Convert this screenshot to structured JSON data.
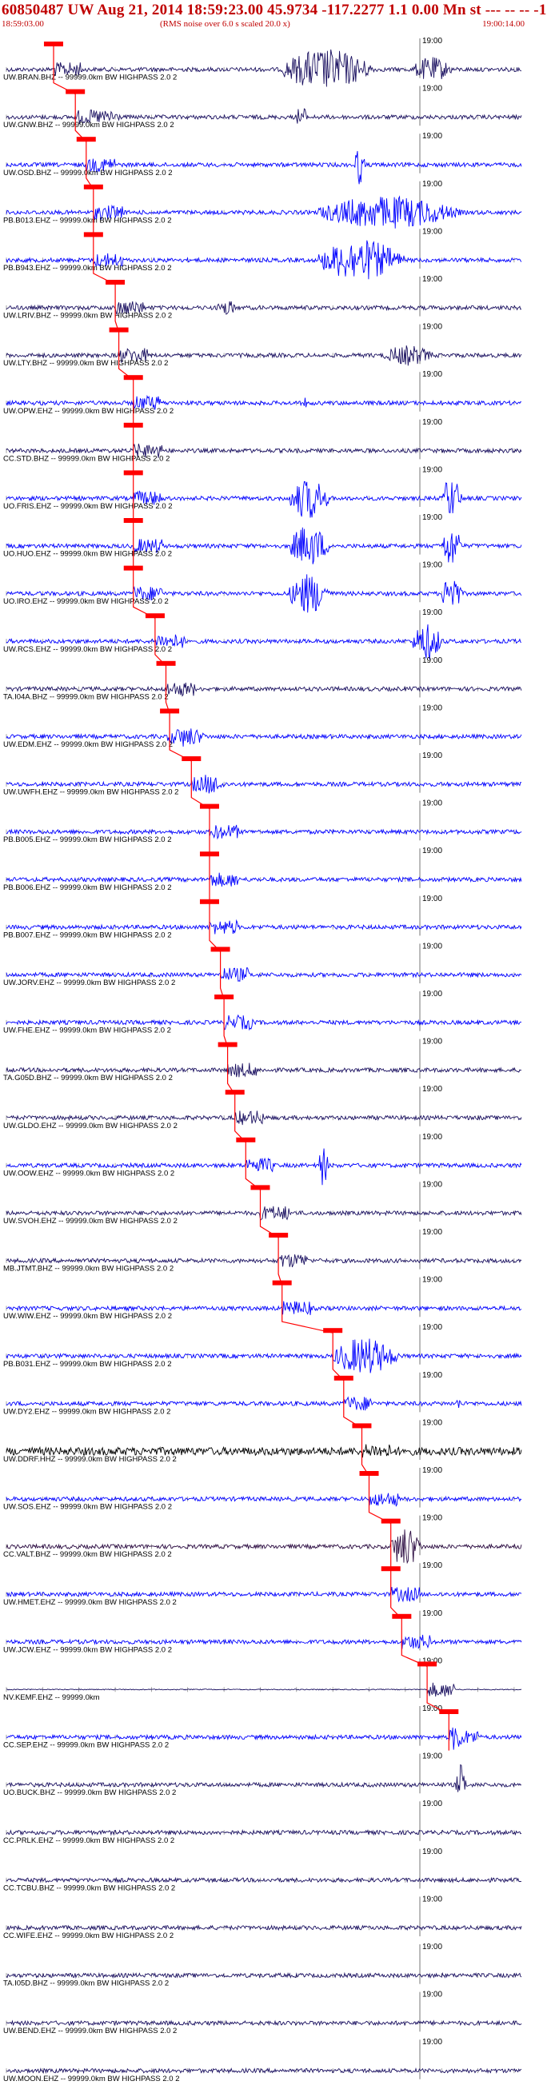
{
  "header": {
    "title": "60850487 UW Aug 21, 2014 18:59:23.00   45.9734 -117.2277  1.1 0.00 Mn st --- -- -- -1",
    "start_time": "18:59:03.00",
    "rms_note": "(RMS noise over 6.0 s scaled 20.0 x)",
    "end_time": "19:00:14.00"
  },
  "colors": {
    "header_text": "#c00000",
    "pick": "#ff0000",
    "trace_blue": "#0000ff",
    "trace_navy": "#1a1060",
    "trace_purple": "#3a1878",
    "trace_black": "#000000",
    "trace_darkpurple": "#2a0a40"
  },
  "minute_label": "19:00",
  "chart_data": {
    "type": "seismogram-record-section",
    "time_range": [
      "18:59:03.00",
      "19:00:14.00"
    ],
    "minute_mark": "19:00",
    "rms_window_s": 6.0,
    "scale_factor": 20.0,
    "traces": [
      {
        "label": "UW.BRAN.BHZ -- 99999.0km BW  HIGHPASS  2.0  2",
        "pick_s": 6.5,
        "color": "navy",
        "energy": [
          [
            38,
            56,
            1.0
          ],
          [
            56,
            64,
            0.6
          ]
        ]
      },
      {
        "label": "UW.GNW.BHZ -- 99999.0km BW  HIGHPASS  2.0  2",
        "pick_s": 9.5,
        "color": "navy",
        "energy": [
          [
            13,
            17,
            0.4
          ],
          [
            40,
            42,
            0.7
          ]
        ]
      },
      {
        "label": "UW.OSD.BHZ -- 99999.0km BW  HIGHPASS  2.0  2",
        "pick_s": 11.0,
        "color": "blue",
        "energy": [
          [
            48,
            50,
            1.0
          ]
        ]
      },
      {
        "label": "PB.B013.EHZ -- 99999.0km BW  HIGHPASS  2.0  2",
        "pick_s": 12.0,
        "color": "blue",
        "energy": [
          [
            43,
            71,
            0.8
          ]
        ]
      },
      {
        "label": "PB.B943.EHZ -- 99999.0km BW  HIGHPASS  2.0  2",
        "pick_s": 12.0,
        "color": "blue",
        "energy": [
          [
            43,
            60,
            1.0
          ]
        ]
      },
      {
        "label": "UW.LRIV.BHZ -- 99999.0km BW  HIGHPASS  2.0  2",
        "pick_s": 15.0,
        "color": "navy",
        "energy": [
          [
            29,
            33,
            0.4
          ]
        ]
      },
      {
        "label": "UW.LTY.BHZ -- 99999.0km BW  HIGHPASS  2.0  2",
        "pick_s": 15.5,
        "color": "navy",
        "energy": [
          [
            52,
            62,
            0.5
          ]
        ]
      },
      {
        "label": "UW.OPW.EHZ -- 99999.0km BW  HIGHPASS  2.0  2",
        "pick_s": 17.5,
        "color": "blue",
        "energy": [
          [
            41,
            42,
            0.3
          ]
        ]
      },
      {
        "label": "CC.STD.BHZ -- 99999.0km BW  HIGHPASS  2.0  2",
        "pick_s": 17.5,
        "color": "navy",
        "energy": []
      },
      {
        "label": "UO.FRIS.EHZ -- 99999.0km BW  HIGHPASS  2.0  2",
        "pick_s": 17.5,
        "color": "blue",
        "energy": [
          [
            39,
            47,
            1.0
          ],
          [
            60,
            64,
            1.0
          ]
        ]
      },
      {
        "label": "UO.HUO.EHZ -- 99999.0km BW  HIGHPASS  2.0  2",
        "pick_s": 17.5,
        "color": "blue",
        "energy": [
          [
            39,
            47,
            1.0
          ],
          [
            60,
            64,
            1.0
          ]
        ]
      },
      {
        "label": "UO.IRO.EHZ -- 99999.0km BW  HIGHPASS  2.0  2",
        "pick_s": 17.5,
        "color": "blue",
        "energy": [
          [
            39,
            47,
            1.0
          ],
          [
            60,
            64,
            1.0
          ]
        ]
      },
      {
        "label": "UW.RCS.EHZ -- 99999.0km BW  HIGHPASS  2.0  2",
        "pick_s": 20.5,
        "color": "blue",
        "energy": [
          [
            56,
            62,
            0.9
          ]
        ]
      },
      {
        "label": "TA.I04A.BHZ -- 99999.0km BW  HIGHPASS  2.0  2",
        "pick_s": 22.0,
        "color": "navy",
        "energy": []
      },
      {
        "label": "UW.EDM.EHZ -- 99999.0km BW  HIGHPASS  2.0  2",
        "pick_s": 22.5,
        "color": "blue",
        "energy": [
          [
            22,
            30,
            0.5
          ]
        ]
      },
      {
        "label": "UW.UWFH.EHZ -- 99999.0km BW  HIGHPASS  2.0  2",
        "pick_s": 25.5,
        "color": "blue",
        "energy": [
          [
            26,
            32,
            0.5
          ]
        ]
      },
      {
        "label": "PB.B005.EHZ -- 99999.0km BW  HIGHPASS  2.0  2",
        "pick_s": 28.0,
        "color": "blue",
        "energy": []
      },
      {
        "label": "PB.B006.EHZ -- 99999.0km BW  HIGHPASS  2.0  2",
        "pick_s": 28.0,
        "color": "blue",
        "energy": []
      },
      {
        "label": "PB.B007.EHZ -- 99999.0km BW  HIGHPASS  2.0  2",
        "pick_s": 28.0,
        "color": "blue",
        "energy": []
      },
      {
        "label": "UW.JORV.EHZ -- 99999.0km BW  HIGHPASS  2.0  2",
        "pick_s": 29.5,
        "color": "blue",
        "energy": []
      },
      {
        "label": "UW.FHE.EHZ -- 99999.0km BW  HIGHPASS  2.0  2",
        "pick_s": 30.0,
        "color": "blue",
        "energy": []
      },
      {
        "label": "TA.G05D.BHZ -- 99999.0km BW  HIGHPASS  2.0  2",
        "pick_s": 30.5,
        "color": "navy",
        "energy": []
      },
      {
        "label": "UW.GLDO.EHZ -- 99999.0km BW  HIGHPASS  2.0  2",
        "pick_s": 31.5,
        "color": "navy",
        "energy": []
      },
      {
        "label": "UW.OOW.EHZ -- 99999.0km BW  HIGHPASS  2.0  2",
        "pick_s": 33.0,
        "color": "blue",
        "energy": [
          [
            43,
            45,
            1.0
          ]
        ]
      },
      {
        "label": "UW.SVOH.EHZ -- 99999.0km BW  HIGHPASS  2.0  2",
        "pick_s": 35.0,
        "color": "navy",
        "energy": []
      },
      {
        "label": "MB.JTMT.BHZ -- 99999.0km BW  HIGHPASS  2.0  2",
        "pick_s": 37.5,
        "color": "navy",
        "energy": []
      },
      {
        "label": "UW.WIW.EHZ -- 99999.0km BW  HIGHPASS  2.0  2",
        "pick_s": 38.0,
        "color": "blue",
        "energy": []
      },
      {
        "label": "PB.B031.EHZ -- 99999.0km BW  HIGHPASS  2.0  2",
        "pick_s": 45.0,
        "color": "blue",
        "energy": [
          [
            45,
            58,
            0.9
          ]
        ]
      },
      {
        "label": "UW.DY2.EHZ -- 99999.0km BW  HIGHPASS  2.0  2",
        "pick_s": 46.5,
        "color": "blue",
        "energy": [
          [
            62,
            63,
            0.3
          ]
        ]
      },
      {
        "label": "UW.DDRF.HHZ -- 99999.0km BW  HIGHPASS  2.0  2",
        "pick_s": 49.0,
        "color": "black",
        "energy": []
      },
      {
        "label": "UW.SOS.EHZ -- 99999.0km BW  HIGHPASS  2.0  2",
        "pick_s": 50.0,
        "color": "blue",
        "energy": []
      },
      {
        "label": "CC.VALT.BHZ -- 99999.0km BW  HIGHPASS  2.0  2",
        "pick_s": 53.0,
        "color": "darkpurple",
        "energy": [
          [
            53,
            59,
            1.0
          ]
        ]
      },
      {
        "label": "UW.HMET.EHZ -- 99999.0km BW  HIGHPASS  2.0  2",
        "pick_s": 53.0,
        "color": "blue",
        "energy": []
      },
      {
        "label": "UW.JCW.EHZ -- 99999.0km BW  HIGHPASS  2.0  2",
        "pick_s": 54.5,
        "color": "blue",
        "energy": []
      },
      {
        "label": "NV.KEMF.EHZ -- 99999.0km",
        "pick_s": 58.0,
        "color": "navy",
        "energy": [],
        "flat": true
      },
      {
        "label": "CC.SEP.EHZ -- 99999.0km BW  HIGHPASS  2.0  2",
        "pick_s": 61.0,
        "color": "blue",
        "energy": [
          [
            61,
            64,
            0.7
          ]
        ]
      },
      {
        "label": "UO.BUCK.BHZ -- 99999.0km BW  HIGHPASS  2.0  2",
        "pick_s": null,
        "color": "navy",
        "energy": [
          [
            62,
            64,
            1.0
          ]
        ]
      },
      {
        "label": "CC.PRLK.EHZ -- 99999.0km BW  HIGHPASS  2.0  2",
        "pick_s": null,
        "color": "navy",
        "energy": []
      },
      {
        "label": "CC.TCBU.BHZ -- 99999.0km BW  HIGHPASS  2.0  2",
        "pick_s": null,
        "color": "navy",
        "energy": []
      },
      {
        "label": "CC.WIFE.EHZ -- 99999.0km BW  HIGHPASS  2.0  2",
        "pick_s": null,
        "color": "navy",
        "energy": []
      },
      {
        "label": "TA.I05D.BHZ -- 99999.0km BW  HIGHPASS  2.0  2",
        "pick_s": null,
        "color": "navy",
        "energy": []
      },
      {
        "label": "UW.BEND.EHZ -- 99999.0km BW  HIGHPASS  2.0  2",
        "pick_s": null,
        "color": "navy",
        "energy": []
      },
      {
        "label": "UW.MOON.EHZ -- 99999.0km BW  HIGHPASS  2.0  2",
        "pick_s": null,
        "color": "navy",
        "energy": []
      }
    ]
  }
}
